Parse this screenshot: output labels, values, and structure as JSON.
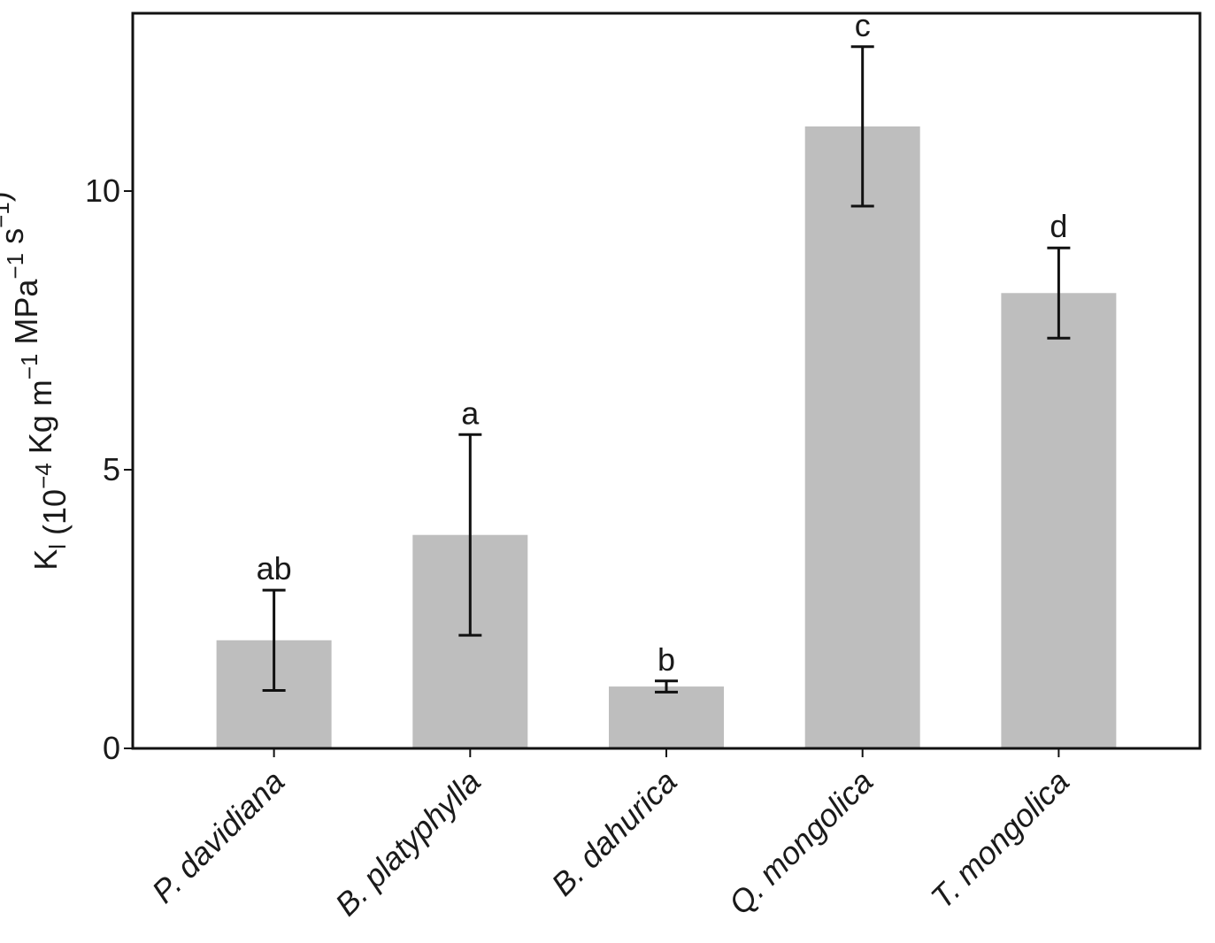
{
  "chart_data": {
    "type": "bar",
    "ylabel": [
      {
        "text": "K"
      },
      {
        "sub": "l"
      },
      {
        "text": " (10"
      },
      {
        "sup": "−4"
      },
      {
        "text": " Kg m"
      },
      {
        "sup": "−1"
      },
      {
        "text": " MPa"
      },
      {
        "sup": "−1"
      },
      {
        "text": " s"
      },
      {
        "sup": "−1"
      },
      {
        "text": ")"
      }
    ],
    "categories": [
      "P. davidiana",
      "B. platyphylla",
      "B. dahurica",
      "Q. mongolica",
      "T. mongolica"
    ],
    "values": [
      1.94,
      3.83,
      1.11,
      11.16,
      8.17
    ],
    "errors": [
      0.9,
      1.8,
      0.1,
      1.43,
      0.81
    ],
    "annotations": [
      "ab",
      "a",
      "b",
      "c",
      "d"
    ],
    "color": "#bebebe",
    "ylim": [
      0,
      13.19
    ],
    "yticks": [
      0,
      5,
      10
    ]
  }
}
